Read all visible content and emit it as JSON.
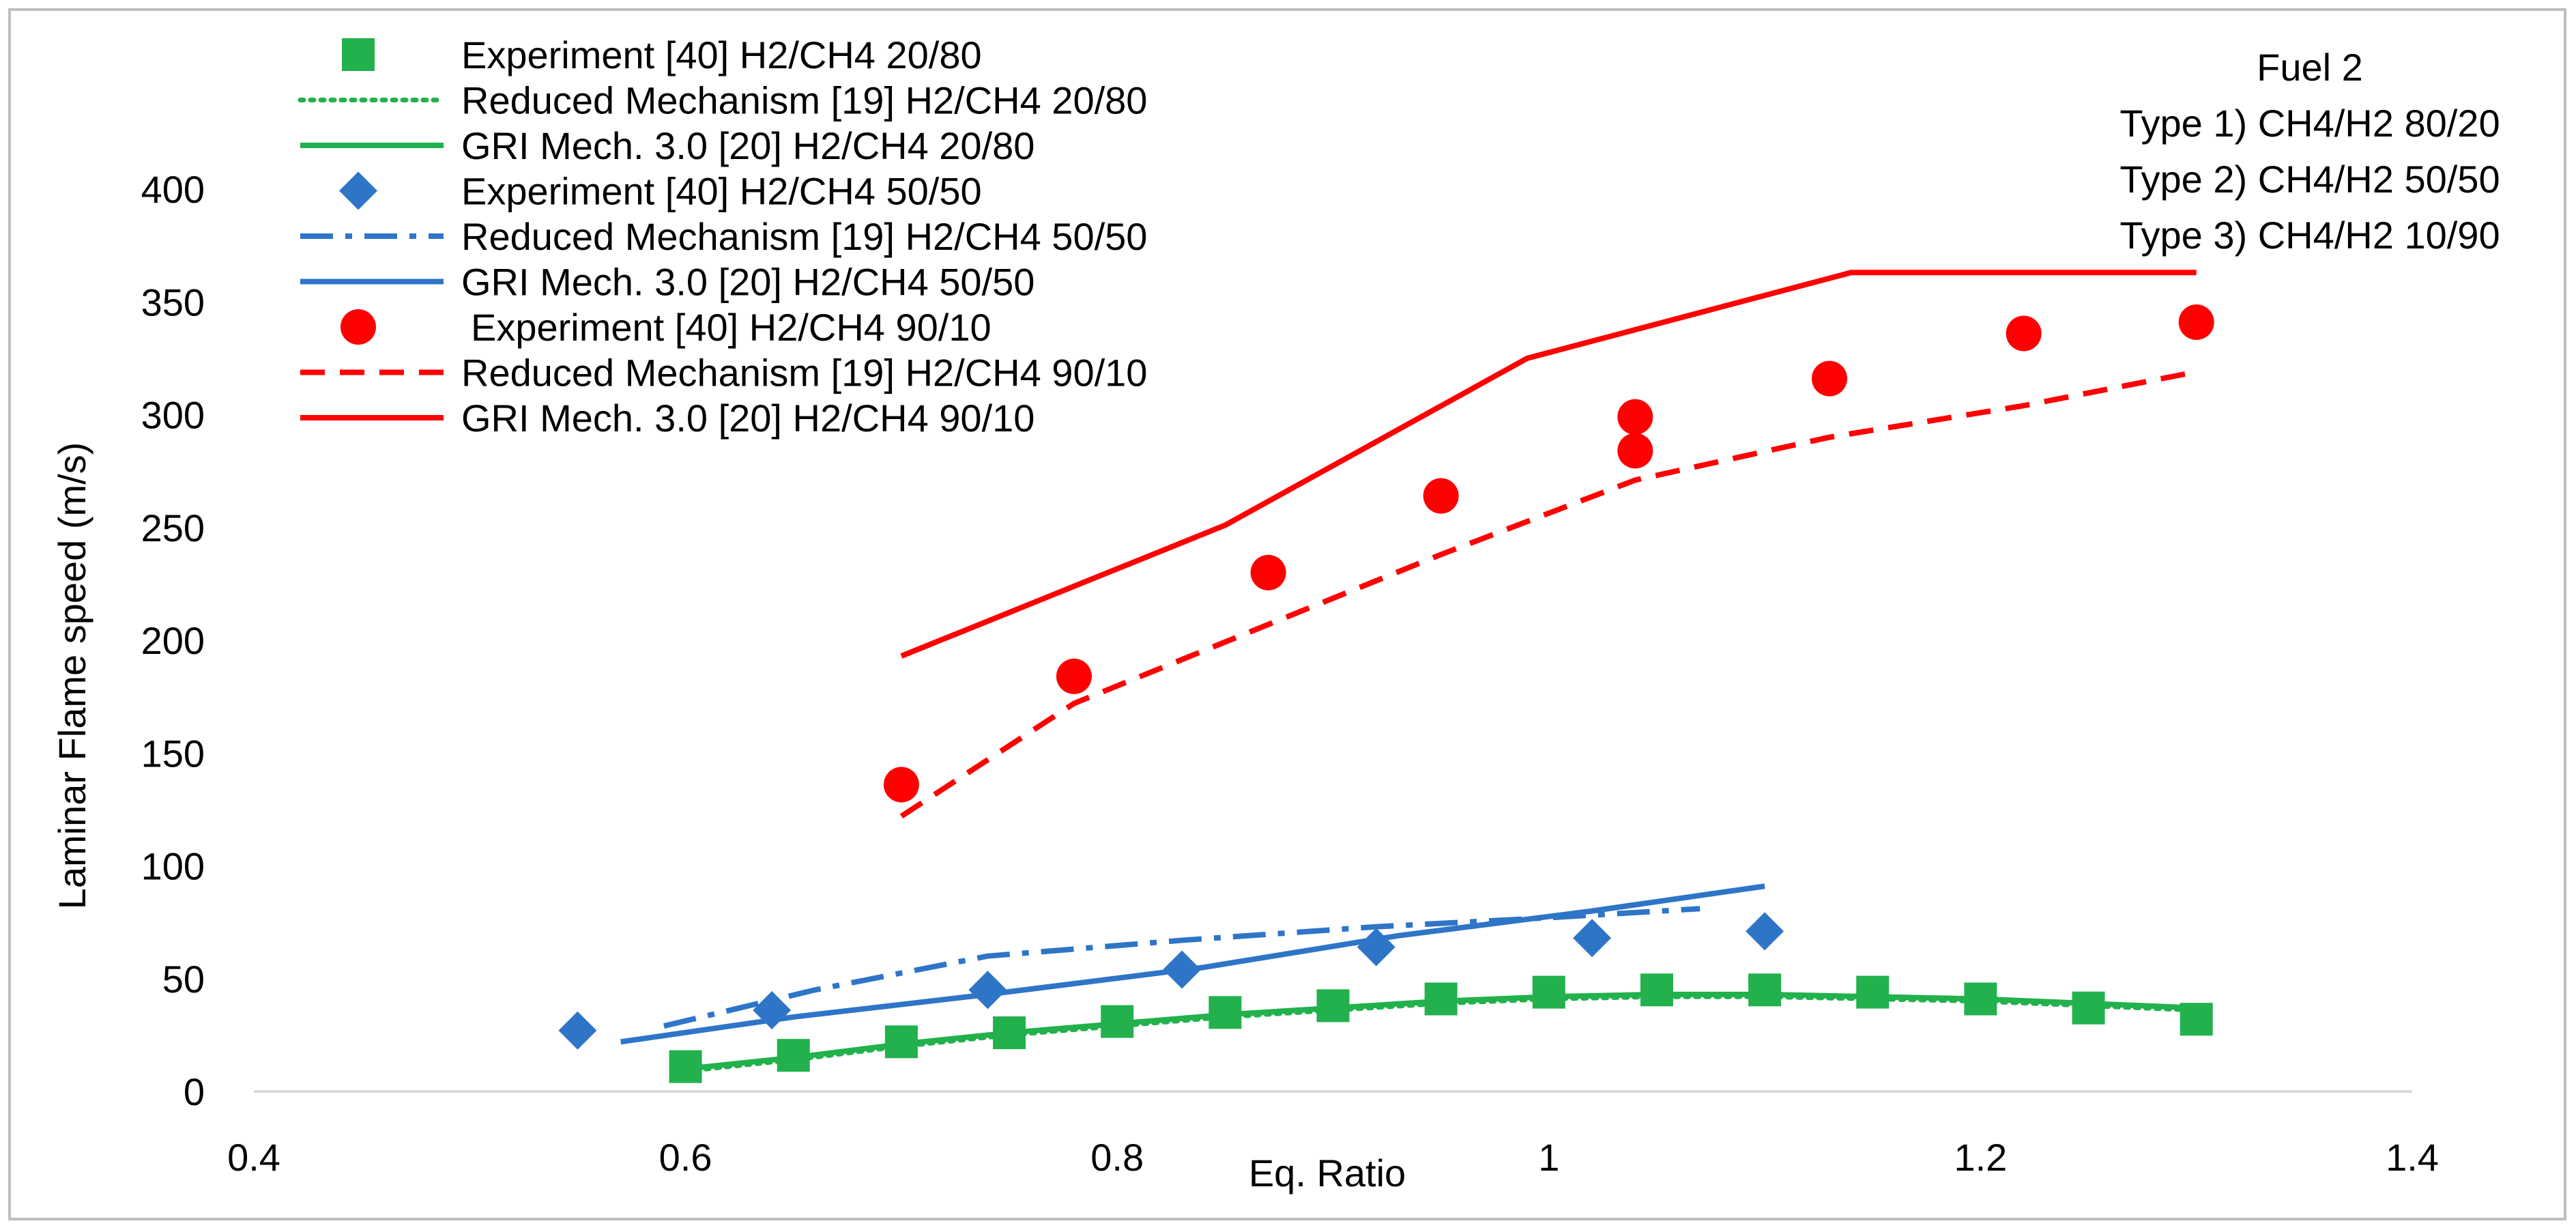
{
  "chart_data": {
    "type": "line",
    "title": "",
    "xlabel": "Eq. Ratio",
    "ylabel": "Laminar Flame speed (m/s)",
    "xlim": [
      0.4,
      1.4
    ],
    "ylim": [
      0,
      400
    ],
    "xticks": [
      0.4,
      0.6,
      0.8,
      1,
      1.2,
      1.4
    ],
    "yticks": [
      0,
      50,
      100,
      150,
      200,
      250,
      300,
      350,
      400
    ],
    "grid": false,
    "legend_position": "top-left",
    "annotation": {
      "lines": [
        "Fuel 2",
        "Type 1) CH4/H2 80/20",
        "Type 2) CH4/H2 50/50",
        "Type 3) CH4/H2 10/90"
      ]
    },
    "series": [
      {
        "name": "Experiment [40] H2/CH4 20/80",
        "kind": "marker",
        "marker": "square",
        "color": "#22b14c",
        "x": [
          0.6,
          0.65,
          0.7,
          0.75,
          0.8,
          0.85,
          0.9,
          0.95,
          1.0,
          1.05,
          1.1,
          1.15,
          1.2,
          1.25,
          1.3
        ],
        "y": [
          11,
          16,
          22,
          26,
          31,
          35,
          38,
          41,
          44,
          45,
          45,
          44,
          41,
          37,
          32
        ]
      },
      {
        "name": "Reduced Mechanism [19] H2/CH4 20/80",
        "kind": "line",
        "dash": "dotted",
        "color": "#22b14c",
        "x": [
          0.6,
          0.65,
          0.7,
          0.75,
          0.8,
          0.85,
          0.9,
          0.95,
          1.0,
          1.05,
          1.1,
          1.15,
          1.2,
          1.25,
          1.3
        ],
        "y": [
          9,
          14,
          20,
          25,
          29,
          33,
          36,
          39,
          41,
          42,
          42,
          41,
          40,
          38,
          36
        ]
      },
      {
        "name": "GRI Mech. 3.0 [20] H2/CH4 20/80",
        "kind": "line",
        "dash": "solid",
        "color": "#22b14c",
        "x": [
          0.6,
          0.65,
          0.7,
          0.75,
          0.8,
          0.85,
          0.9,
          0.95,
          1.0,
          1.05,
          1.1,
          1.15,
          1.2,
          1.25,
          1.3
        ],
        "y": [
          10,
          15,
          21,
          26,
          30,
          34,
          37,
          40,
          42,
          43,
          43,
          42,
          41,
          39,
          37
        ]
      },
      {
        "name": "Experiment [40] H2/CH4 50/50",
        "kind": "marker",
        "marker": "diamond",
        "color": "#2e75c8",
        "x": [
          0.55,
          0.64,
          0.74,
          0.83,
          0.92,
          1.02,
          1.1
        ],
        "y": [
          27,
          36,
          45,
          54,
          64,
          68,
          71
        ]
      },
      {
        "name": "Reduced Mechanism [19] H2/CH4 50/50",
        "kind": "line",
        "dash": "dashdot",
        "color": "#2e75c8",
        "x": [
          0.59,
          0.66,
          0.74,
          0.83,
          0.92,
          1.0,
          1.07
        ],
        "y": [
          29,
          45,
          60,
          67,
          73,
          77,
          81
        ]
      },
      {
        "name": "GRI Mech. 3.0 [20] H2/CH4 50/50",
        "kind": "line",
        "dash": "solid",
        "color": "#2e75c8",
        "x": [
          0.57,
          0.65,
          0.74,
          0.84,
          0.93,
          1.02,
          1.1
        ],
        "y": [
          22,
          33,
          43,
          55,
          69,
          80,
          91
        ]
      },
      {
        "name": "Experiment [40] H2/CH4 90/10",
        "kind": "marker",
        "marker": "circle",
        "color": "#ff0000",
        "x": [
          0.7,
          0.78,
          0.87,
          0.95,
          1.04,
          1.04,
          1.13,
          1.22,
          1.3
        ],
        "y": [
          136,
          184,
          230,
          264,
          284,
          299,
          316,
          336,
          341
        ]
      },
      {
        "name": "Reduced Mechanism [19] H2/CH4 90/10",
        "kind": "line",
        "dash": "dashed",
        "color": "#ff0000",
        "x": [
          0.7,
          0.78,
          0.87,
          0.95,
          1.04,
          1.13,
          1.22,
          1.3
        ],
        "y": [
          122,
          172,
          207,
          238,
          271,
          290,
          304,
          319
        ]
      },
      {
        "name": "GRI Mech. 3.0 [20] H2/CH4 90/10",
        "kind": "line",
        "dash": "solid",
        "color": "#ff0000",
        "x": [
          0.7,
          0.85,
          0.99,
          1.14,
          1.3
        ],
        "y": [
          193,
          251,
          325,
          363,
          363
        ]
      }
    ]
  }
}
